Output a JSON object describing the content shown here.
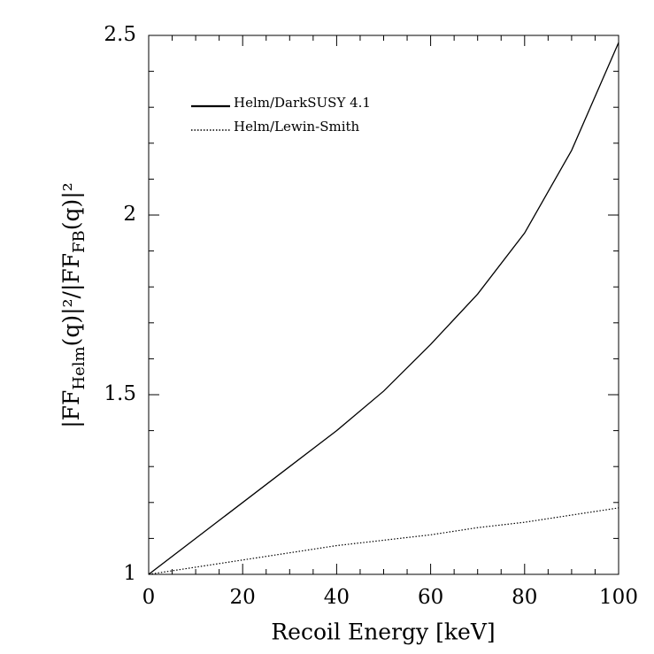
{
  "chart_data": {
    "type": "line",
    "xlabel": "Recoil Energy [keV]",
    "ylabel": [
      "|FF",
      "Helm",
      "(q)|²/|FF",
      "FB",
      "(q)|²"
    ],
    "x": [
      0,
      10,
      20,
      30,
      40,
      50,
      60,
      70,
      80,
      90,
      100
    ],
    "series": [
      {
        "name": "Helm/DarkSUSY 4.1",
        "color": "#000000",
        "dash": "solid",
        "values": [
          1,
          1.1,
          1.2,
          1.3,
          1.4,
          1.51,
          1.64,
          1.78,
          1.95,
          2.18,
          2.48
        ]
      },
      {
        "name": "Helm/Lewin-Smith",
        "color": "#000000",
        "dash": "dotted",
        "values": [
          1,
          1.02,
          1.04,
          1.06,
          1.08,
          1.095,
          1.11,
          1.13,
          1.145,
          1.165,
          1.185
        ]
      }
    ],
    "xlim": [
      0,
      100
    ],
    "xticks": [
      0,
      20,
      40,
      60,
      80,
      100
    ],
    "ylim": [
      1,
      2.5
    ],
    "yticks": [
      1,
      1.5,
      2,
      2.5
    ],
    "legend": "upper-left"
  }
}
